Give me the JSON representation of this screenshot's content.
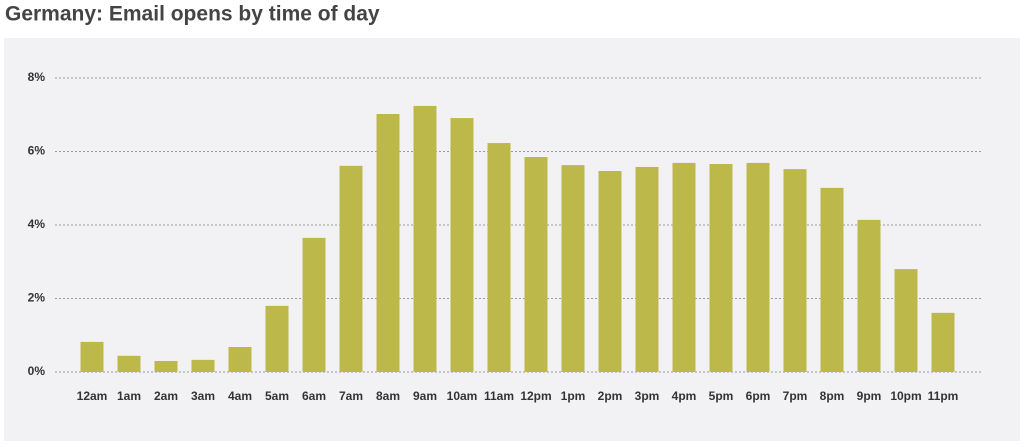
{
  "chart_data": {
    "type": "bar",
    "title": "Germany: Email opens by time of day",
    "categories": [
      "12am",
      "1am",
      "2am",
      "3am",
      "4am",
      "5am",
      "6am",
      "7am",
      "8am",
      "9am",
      "10am",
      "11am",
      "12pm",
      "1pm",
      "2pm",
      "3pm",
      "4pm",
      "5pm",
      "6pm",
      "7pm",
      "8pm",
      "9pm",
      "10pm",
      "11pm"
    ],
    "values": [
      0.82,
      0.44,
      0.3,
      0.33,
      0.68,
      1.8,
      3.65,
      5.61,
      7.02,
      7.24,
      6.91,
      6.23,
      5.85,
      5.63,
      5.47,
      5.58,
      5.69,
      5.66,
      5.69,
      5.52,
      5.01,
      4.14,
      2.8,
      1.61
    ],
    "color": "#bdb84a",
    "ylim": [
      0,
      8
    ],
    "yticks": [
      {
        "value": 0,
        "label": "0%"
      },
      {
        "value": 2,
        "label": "2%"
      },
      {
        "value": 4,
        "label": "4%"
      },
      {
        "value": 6,
        "label": "6%"
      },
      {
        "value": 8,
        "label": "8%"
      }
    ],
    "grid": true
  }
}
